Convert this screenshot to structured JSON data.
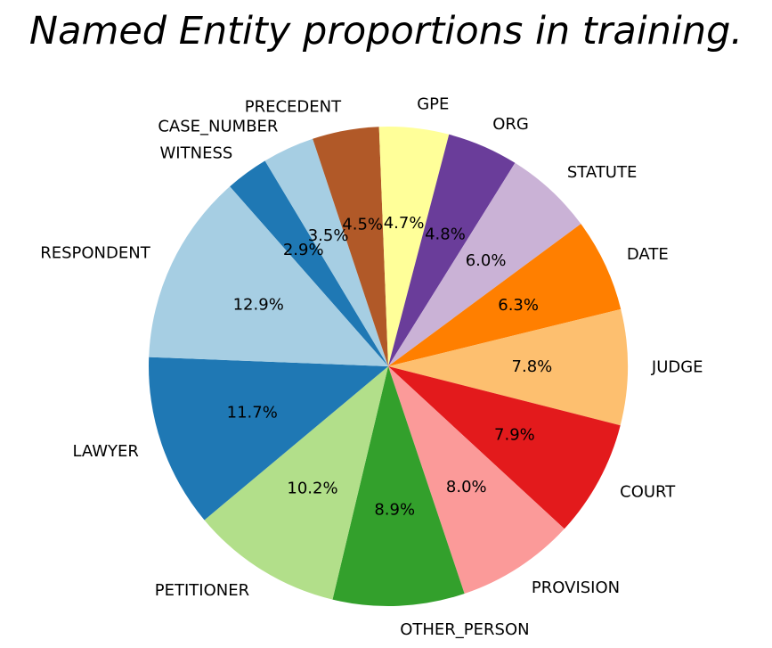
{
  "chart_data": {
    "type": "pie",
    "title": "Named Entity proportions in training.",
    "categories": [
      "WITNESS",
      "CASE_NUMBER",
      "PRECEDENT",
      "GPE",
      "ORG",
      "STATUTE",
      "DATE",
      "JUDGE",
      "COURT",
      "PROVISION",
      "OTHER_PERSON",
      "PETITIONER",
      "LAWYER",
      "RESPONDENT"
    ],
    "values": [
      2.9,
      3.5,
      4.5,
      4.7,
      4.8,
      6.0,
      6.3,
      7.8,
      7.9,
      8.0,
      8.9,
      10.2,
      11.7,
      12.9
    ],
    "value_labels": [
      "2.9%",
      "3.5%",
      "4.5%",
      "4.7%",
      "4.8%",
      "6.0%",
      "6.3%",
      "7.8%",
      "7.9%",
      "8.0%",
      "8.9%",
      "10.2%",
      "11.7%",
      "12.9%"
    ],
    "colors": [
      "#1f78b4",
      "#a6cee3",
      "#b15928",
      "#ffff99",
      "#6a3d9a",
      "#cab2d6",
      "#ff7f00",
      "#fdbf6f",
      "#e31a1c",
      "#fb9a99",
      "#33a02c",
      "#b2df8a",
      "#1f78b4",
      "#a6cee3"
    ],
    "start_angle_deg": 131.4,
    "direction": "clockwise",
    "legend": "none"
  }
}
